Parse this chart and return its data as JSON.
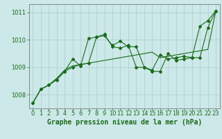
{
  "xlabel": "Graphe pression niveau de la mer (hPa)",
  "bg_color": "#cce8e8",
  "grid_color": "#aacccc",
  "line_color": "#1a6b1a",
  "marker_color": "#1a6b1a",
  "ylim": [
    1007.5,
    1011.3
  ],
  "xlim": [
    -0.5,
    23.5
  ],
  "yticks": [
    1008,
    1009,
    1010,
    1011
  ],
  "xticks": [
    0,
    1,
    2,
    3,
    4,
    5,
    6,
    7,
    8,
    9,
    10,
    11,
    12,
    13,
    14,
    15,
    16,
    17,
    18,
    19,
    20,
    21,
    22,
    23
  ],
  "series": [
    [
      1007.7,
      1008.2,
      1008.35,
      1008.55,
      1008.85,
      1009.0,
      1009.1,
      1009.15,
      1010.1,
      1010.2,
      1009.75,
      1009.7,
      1009.8,
      1009.0,
      1009.0,
      1008.85,
      1008.85,
      1009.5,
      1009.25,
      1009.3,
      1009.35,
      1010.5,
      1010.7,
      1011.05
    ],
    [
      1007.7,
      1008.2,
      1008.35,
      1008.55,
      1008.85,
      1009.3,
      1009.05,
      1010.05,
      1010.1,
      1010.15,
      1009.8,
      1009.95,
      1009.75,
      1009.75,
      1009.0,
      1008.9,
      1009.45,
      1009.3,
      1009.35,
      1009.4,
      1009.35,
      1009.35,
      1010.45,
      1011.05
    ],
    [
      1007.7,
      1008.2,
      1008.35,
      1008.6,
      1008.9,
      1009.05,
      1009.1,
      1009.15,
      1009.2,
      1009.25,
      1009.3,
      1009.35,
      1009.4,
      1009.45,
      1009.5,
      1009.55,
      1009.35,
      1009.4,
      1009.45,
      1009.5,
      1009.55,
      1009.6,
      1009.65,
      1011.05
    ]
  ],
  "has_markers": [
    true,
    true,
    false
  ],
  "marker_size": 2.0,
  "linewidths": [
    0.8,
    0.8,
    0.8
  ],
  "xlabel_fontsize": 7,
  "xlabel_bold": true,
  "tick_fontsize": 6,
  "tick_color": "#1a6b1a",
  "axis_color": "#666666"
}
